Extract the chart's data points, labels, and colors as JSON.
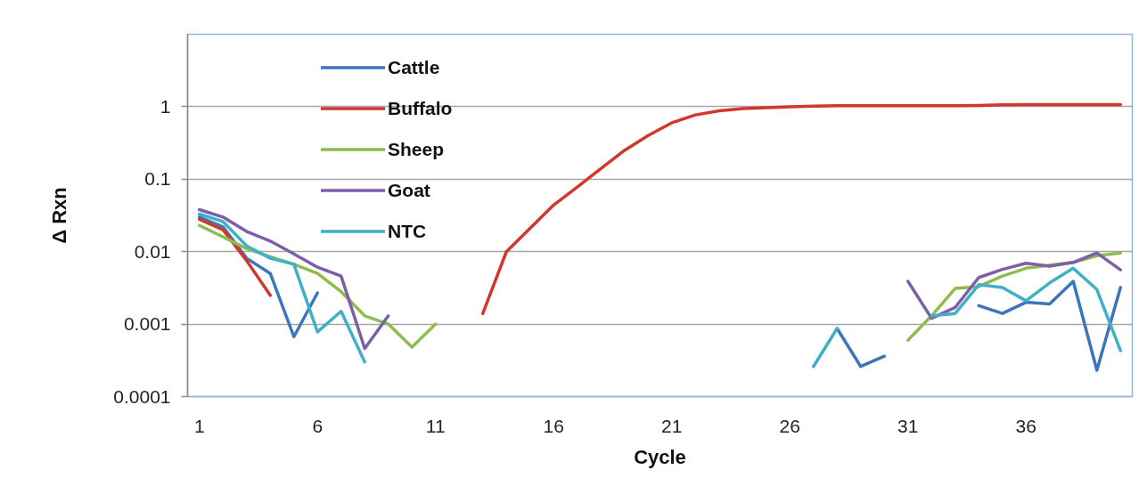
{
  "chart_data": {
    "type": "line",
    "xlabel": "Cycle",
    "ylabel": "Δ Rxn",
    "log": "y",
    "grid": "y",
    "legend": "top left",
    "x": [
      1,
      2,
      3,
      4,
      5,
      6,
      7,
      8,
      9,
      10,
      11,
      12,
      13,
      14,
      15,
      16,
      17,
      18,
      19,
      20,
      21,
      22,
      23,
      24,
      25,
      26,
      27,
      28,
      29,
      30,
      31,
      32,
      33,
      34,
      35,
      36,
      37,
      38,
      39,
      40
    ],
    "xlim": [
      0.5,
      40.5
    ],
    "xticks": [
      1,
      6,
      11,
      16,
      21,
      26,
      31,
      36
    ],
    "ylim": [
      0.0001,
      10
    ],
    "yticks": [
      0.0001,
      0.001,
      0.01,
      0.1,
      1
    ],
    "series": [
      {
        "name": "Cattle",
        "color": "#3b76bd",
        "values": [
          0.03,
          0.022,
          0.0081,
          0.005,
          0.00067,
          0.0027,
          null,
          null,
          null,
          null,
          null,
          null,
          null,
          null,
          null,
          null,
          null,
          null,
          null,
          null,
          null,
          null,
          null,
          null,
          null,
          null,
          null,
          0.00087,
          0.00026,
          0.00036,
          null,
          null,
          null,
          0.0018,
          0.0014,
          0.002,
          0.0019,
          0.0039,
          0.00023,
          0.0032
        ]
      },
      {
        "name": "Buffalo",
        "color": "#d1382a",
        "values": [
          0.028,
          0.02,
          0.0075,
          0.0025,
          null,
          null,
          null,
          null,
          null,
          null,
          null,
          null,
          0.0014,
          0.01,
          0.021,
          0.044,
          0.078,
          0.14,
          0.25,
          0.4,
          0.6,
          0.77,
          0.88,
          0.94,
          0.97,
          1.0,
          1.02,
          1.03,
          1.03,
          1.03,
          1.03,
          1.03,
          1.03,
          1.04,
          1.06,
          1.07,
          1.07,
          1.07,
          1.07,
          1.07
        ]
      },
      {
        "name": "Sheep",
        "color": "#8fbc4f",
        "values": [
          0.023,
          0.016,
          0.011,
          0.0085,
          0.0067,
          0.005,
          0.0028,
          0.0013,
          0.001,
          0.00048,
          0.001,
          null,
          null,
          null,
          null,
          null,
          null,
          null,
          null,
          null,
          null,
          null,
          null,
          null,
          null,
          null,
          null,
          null,
          null,
          null,
          0.0006,
          0.0013,
          0.0031,
          0.0033,
          0.0046,
          0.0059,
          0.0065,
          0.0071,
          0.0088,
          0.0096
        ]
      },
      {
        "name": "Goat",
        "color": "#7d5fa8",
        "values": [
          0.038,
          0.03,
          0.019,
          0.014,
          0.0093,
          0.0061,
          0.0046,
          0.00046,
          0.0013,
          null,
          null,
          null,
          null,
          null,
          null,
          null,
          null,
          null,
          null,
          null,
          null,
          null,
          null,
          null,
          null,
          null,
          null,
          null,
          null,
          null,
          0.0039,
          0.0012,
          0.0017,
          0.0044,
          0.0057,
          0.0069,
          0.0063,
          0.0071,
          0.0096,
          0.0056
        ]
      },
      {
        "name": "NTC",
        "color": "#3fb0c8",
        "values": [
          0.033,
          0.026,
          0.012,
          0.0081,
          0.0067,
          0.00078,
          0.0015,
          0.0003,
          null,
          null,
          null,
          null,
          null,
          null,
          null,
          null,
          null,
          null,
          null,
          null,
          null,
          null,
          null,
          null,
          null,
          null,
          0.00026,
          0.00087,
          null,
          null,
          null,
          0.0013,
          0.0014,
          0.0035,
          0.0032,
          0.0021,
          0.0037,
          0.0059,
          0.003,
          0.00043
        ]
      }
    ]
  }
}
